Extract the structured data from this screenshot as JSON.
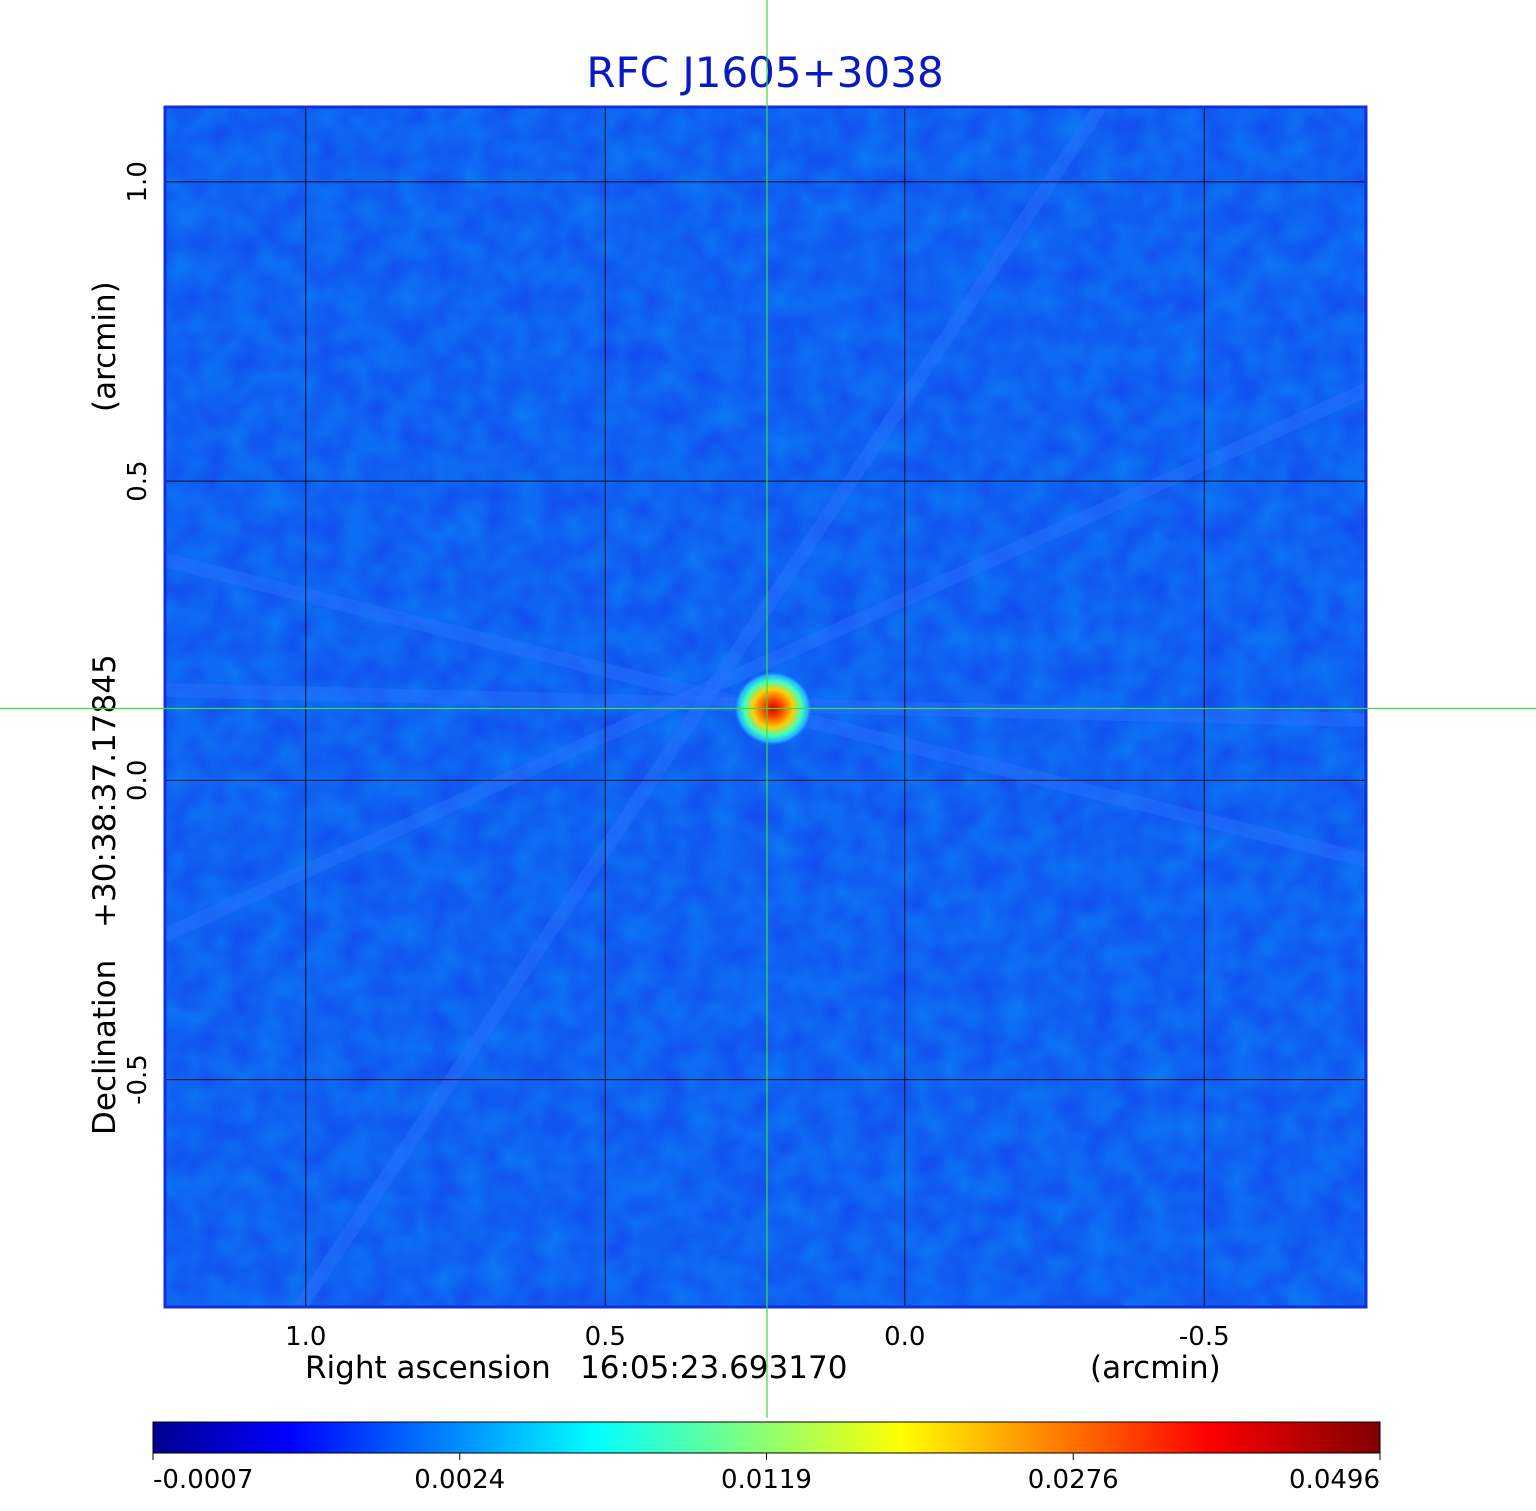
{
  "chart_data": {
    "type": "heatmap",
    "title": "RFC J1605+3038",
    "xlabel": {
      "prefix": "Right ascension",
      "value": "16:05:23.693170",
      "unit": "(arcmin)"
    },
    "ylabel": {
      "prefix": "Declination",
      "value": "+30:38:37.17845",
      "unit": "(arcmin)"
    },
    "x_ticks": [
      1.0,
      0.5,
      0.0,
      -0.5
    ],
    "x_tick_labels": [
      "1.0",
      "0.5",
      "0.0",
      "-0.5"
    ],
    "y_ticks": [
      1.0,
      0.5,
      0.0,
      -0.5
    ],
    "y_tick_labels": [
      "1.0",
      "0.5",
      "0.0",
      "-0.5"
    ],
    "xlim": [
      1.235,
      -0.77
    ],
    "ylim": [
      -0.88,
      1.125
    ],
    "grid": true,
    "colormap": "jet",
    "colorbar": {
      "ticks": [
        "-0.0007",
        "0.0024",
        "0.0119",
        "0.0276",
        "0.0496"
      ],
      "min": -0.0007,
      "max": 0.0496
    },
    "source": {
      "x": 0.22,
      "y": 0.12,
      "peak": 0.0496
    },
    "crosshair": {
      "x": 0.23,
      "y": 0.12,
      "color": "#3cdc3c"
    }
  }
}
